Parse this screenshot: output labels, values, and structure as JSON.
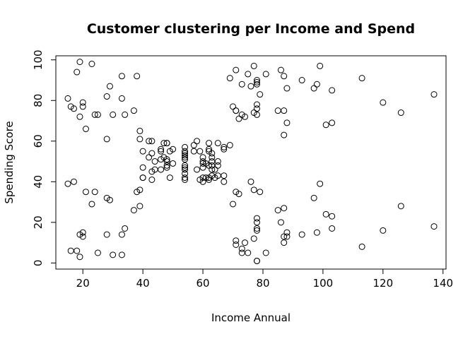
{
  "chart_data": {
    "type": "scatter",
    "title": "Customer clustering per Income and Spend",
    "xlabel": "Income Annual",
    "ylabel": "Spending Score",
    "xlim": [
      11,
      141
    ],
    "ylim": [
      -3,
      102
    ],
    "xticks": [
      20,
      40,
      60,
      80,
      100,
      120,
      140
    ],
    "yticks": [
      0,
      20,
      40,
      60,
      80,
      100
    ],
    "grid": false,
    "marker": "open-circle",
    "points": [
      [
        15,
        39
      ],
      [
        15,
        81
      ],
      [
        16,
        6
      ],
      [
        16,
        77
      ],
      [
        17,
        40
      ],
      [
        17,
        76
      ],
      [
        18,
        6
      ],
      [
        18,
        94
      ],
      [
        19,
        3
      ],
      [
        19,
        72
      ],
      [
        19,
        14
      ],
      [
        19,
        99
      ],
      [
        20,
        15
      ],
      [
        20,
        77
      ],
      [
        20,
        13
      ],
      [
        20,
        79
      ],
      [
        21,
        35
      ],
      [
        21,
        66
      ],
      [
        23,
        29
      ],
      [
        23,
        98
      ],
      [
        24,
        35
      ],
      [
        24,
        73
      ],
      [
        25,
        5
      ],
      [
        25,
        73
      ],
      [
        28,
        14
      ],
      [
        28,
        82
      ],
      [
        28,
        32
      ],
      [
        28,
        61
      ],
      [
        29,
        31
      ],
      [
        29,
        87
      ],
      [
        30,
        4
      ],
      [
        30,
        73
      ],
      [
        33,
        4
      ],
      [
        33,
        92
      ],
      [
        33,
        14
      ],
      [
        33,
        81
      ],
      [
        34,
        17
      ],
      [
        34,
        73
      ],
      [
        37,
        26
      ],
      [
        37,
        75
      ],
      [
        38,
        35
      ],
      [
        38,
        92
      ],
      [
        39,
        36
      ],
      [
        39,
        61
      ],
      [
        39,
        28
      ],
      [
        39,
        65
      ],
      [
        40,
        55
      ],
      [
        40,
        47
      ],
      [
        40,
        42
      ],
      [
        40,
        42
      ],
      [
        42,
        52
      ],
      [
        42,
        60
      ],
      [
        43,
        54
      ],
      [
        43,
        60
      ],
      [
        43,
        45
      ],
      [
        43,
        41
      ],
      [
        44,
        50
      ],
      [
        44,
        46
      ],
      [
        46,
        51
      ],
      [
        46,
        46
      ],
      [
        46,
        56
      ],
      [
        46,
        55
      ],
      [
        47,
        52
      ],
      [
        47,
        59
      ],
      [
        48,
        51
      ],
      [
        48,
        59
      ],
      [
        48,
        50
      ],
      [
        48,
        48
      ],
      [
        48,
        59
      ],
      [
        48,
        47
      ],
      [
        49,
        55
      ],
      [
        49,
        42
      ],
      [
        50,
        49
      ],
      [
        50,
        56
      ],
      [
        54,
        47
      ],
      [
        54,
        54
      ],
      [
        54,
        53
      ],
      [
        54,
        48
      ],
      [
        54,
        52
      ],
      [
        54,
        42
      ],
      [
        54,
        51
      ],
      [
        54,
        55
      ],
      [
        54,
        41
      ],
      [
        54,
        44
      ],
      [
        54,
        57
      ],
      [
        54,
        46
      ],
      [
        57,
        58
      ],
      [
        57,
        55
      ],
      [
        58,
        60
      ],
      [
        58,
        46
      ],
      [
        59,
        55
      ],
      [
        59,
        41
      ],
      [
        60,
        49
      ],
      [
        60,
        40
      ],
      [
        60,
        42
      ],
      [
        60,
        52
      ],
      [
        60,
        47
      ],
      [
        60,
        50
      ],
      [
        61,
        42
      ],
      [
        61,
        49
      ],
      [
        62,
        41
      ],
      [
        62,
        48
      ],
      [
        62,
        59
      ],
      [
        62,
        55
      ],
      [
        62,
        56
      ],
      [
        62,
        42
      ],
      [
        63,
        50
      ],
      [
        63,
        46
      ],
      [
        63,
        43
      ],
      [
        63,
        48
      ],
      [
        63,
        52
      ],
      [
        63,
        54
      ],
      [
        64,
        42
      ],
      [
        64,
        46
      ],
      [
        65,
        48
      ],
      [
        65,
        50
      ],
      [
        65,
        43
      ],
      [
        65,
        59
      ],
      [
        67,
        43
      ],
      [
        67,
        57
      ],
      [
        67,
        56
      ],
      [
        67,
        40
      ],
      [
        69,
        58
      ],
      [
        69,
        91
      ],
      [
        70,
        29
      ],
      [
        70,
        77
      ],
      [
        71,
        35
      ],
      [
        71,
        95
      ],
      [
        71,
        11
      ],
      [
        71,
        75
      ],
      [
        71,
        9
      ],
      [
        71,
        75
      ],
      [
        72,
        34
      ],
      [
        72,
        71
      ],
      [
        73,
        5
      ],
      [
        73,
        88
      ],
      [
        73,
        7
      ],
      [
        73,
        73
      ],
      [
        74,
        10
      ],
      [
        74,
        72
      ],
      [
        75,
        5
      ],
      [
        75,
        93
      ],
      [
        76,
        40
      ],
      [
        76,
        87
      ],
      [
        77,
        12
      ],
      [
        77,
        97
      ],
      [
        77,
        36
      ],
      [
        77,
        74
      ],
      [
        78,
        22
      ],
      [
        78,
        90
      ],
      [
        78,
        17
      ],
      [
        78,
        88
      ],
      [
        78,
        20
      ],
      [
        78,
        76
      ],
      [
        78,
        16
      ],
      [
        78,
        89
      ],
      [
        78,
        1
      ],
      [
        78,
        78
      ],
      [
        78,
        1
      ],
      [
        78,
        73
      ],
      [
        79,
        35
      ],
      [
        79,
        83
      ],
      [
        81,
        5
      ],
      [
        81,
        93
      ],
      [
        85,
        26
      ],
      [
        85,
        75
      ],
      [
        86,
        20
      ],
      [
        86,
        95
      ],
      [
        87,
        27
      ],
      [
        87,
        63
      ],
      [
        87,
        13
      ],
      [
        87,
        75
      ],
      [
        87,
        10
      ],
      [
        87,
        92
      ],
      [
        88,
        13
      ],
      [
        88,
        86
      ],
      [
        88,
        15
      ],
      [
        88,
        69
      ],
      [
        93,
        14
      ],
      [
        93,
        90
      ],
      [
        97,
        32
      ],
      [
        97,
        86
      ],
      [
        98,
        15
      ],
      [
        98,
        88
      ],
      [
        99,
        39
      ],
      [
        99,
        97
      ],
      [
        101,
        24
      ],
      [
        101,
        68
      ],
      [
        103,
        17
      ],
      [
        103,
        85
      ],
      [
        103,
        23
      ],
      [
        103,
        69
      ],
      [
        113,
        8
      ],
      [
        113,
        91
      ],
      [
        120,
        16
      ],
      [
        120,
        79
      ],
      [
        126,
        28
      ],
      [
        126,
        74
      ],
      [
        137,
        18
      ],
      [
        137,
        83
      ]
    ]
  }
}
